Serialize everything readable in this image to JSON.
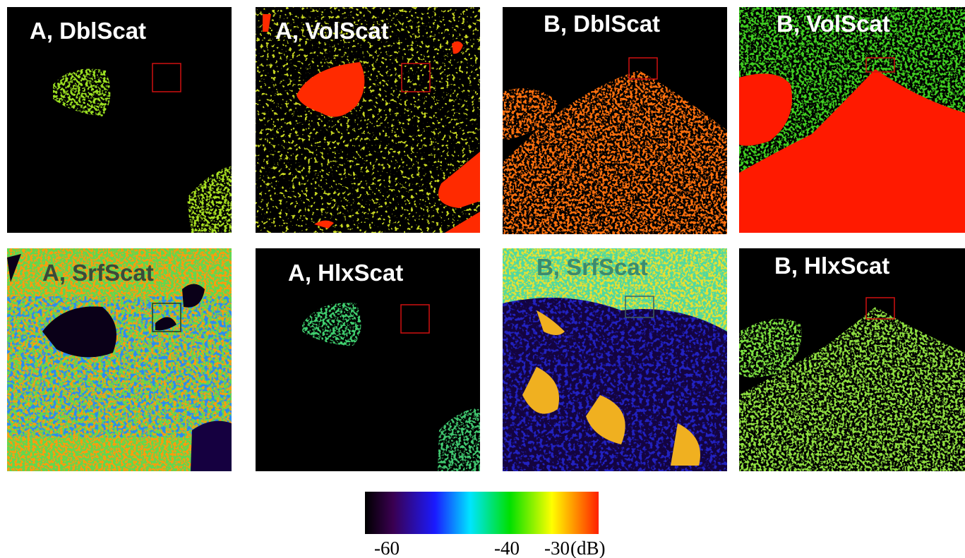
{
  "panels": [
    {
      "label": "A, DblScat"
    },
    {
      "label": "A, VolScat"
    },
    {
      "label": "B, DblScat"
    },
    {
      "label": "B, VolScat"
    },
    {
      "label": "A, SrfScat"
    },
    {
      "label": "A, HlxScat"
    },
    {
      "label": "B, SrfScat"
    },
    {
      "label": "B, HlxScat"
    }
  ],
  "colorbar": {
    "ticks": [
      "-60",
      "-40",
      "-30"
    ],
    "unit": "(dB)"
  }
}
